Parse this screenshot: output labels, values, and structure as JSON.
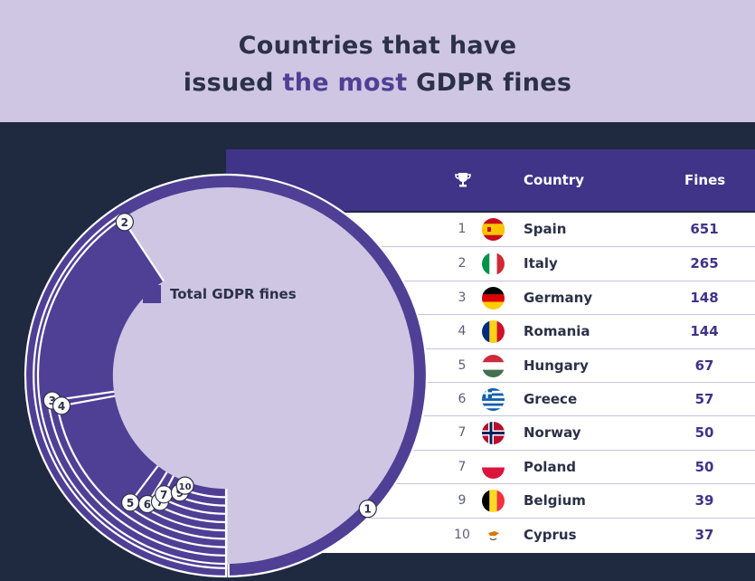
{
  "title": {
    "line1": "Countries that have",
    "line2_pre": "issued ",
    "line2_accent": "the most",
    "line2_post": " GDPR fines"
  },
  "table": {
    "rank_header_icon": "trophy-icon",
    "country_header": "Country",
    "fines_header": "Fines"
  },
  "legend": {
    "label": "Total GDPR fines",
    "color": "#4f3f95"
  },
  "colors": {
    "accent": "#4f3f95",
    "header_bg": "#cfc6e3",
    "page_bg": "#1f2a40",
    "band": "#3f3488",
    "disc": "#cfc6e3",
    "ring_gap": "#ffffff"
  },
  "chart_data": {
    "type": "radial_bar",
    "title": "Countries that have issued the most GDPR fines",
    "series_name": "Total GDPR fines",
    "max_value": 651,
    "categories": [
      "Spain",
      "Italy",
      "Germany",
      "Romania",
      "Hungary",
      "Greece",
      "Norway",
      "Poland",
      "Belgium",
      "Cyprus"
    ],
    "ranks": [
      "1",
      "2",
      "3",
      "4",
      "5",
      "6",
      "7",
      "7",
      "9",
      "10"
    ],
    "values": [
      651,
      265,
      148,
      144,
      67,
      57,
      50,
      50,
      39,
      37
    ],
    "flags": [
      "es",
      "it",
      "de",
      "ro",
      "hu",
      "gr",
      "no",
      "pl",
      "be",
      "cy"
    ]
  }
}
